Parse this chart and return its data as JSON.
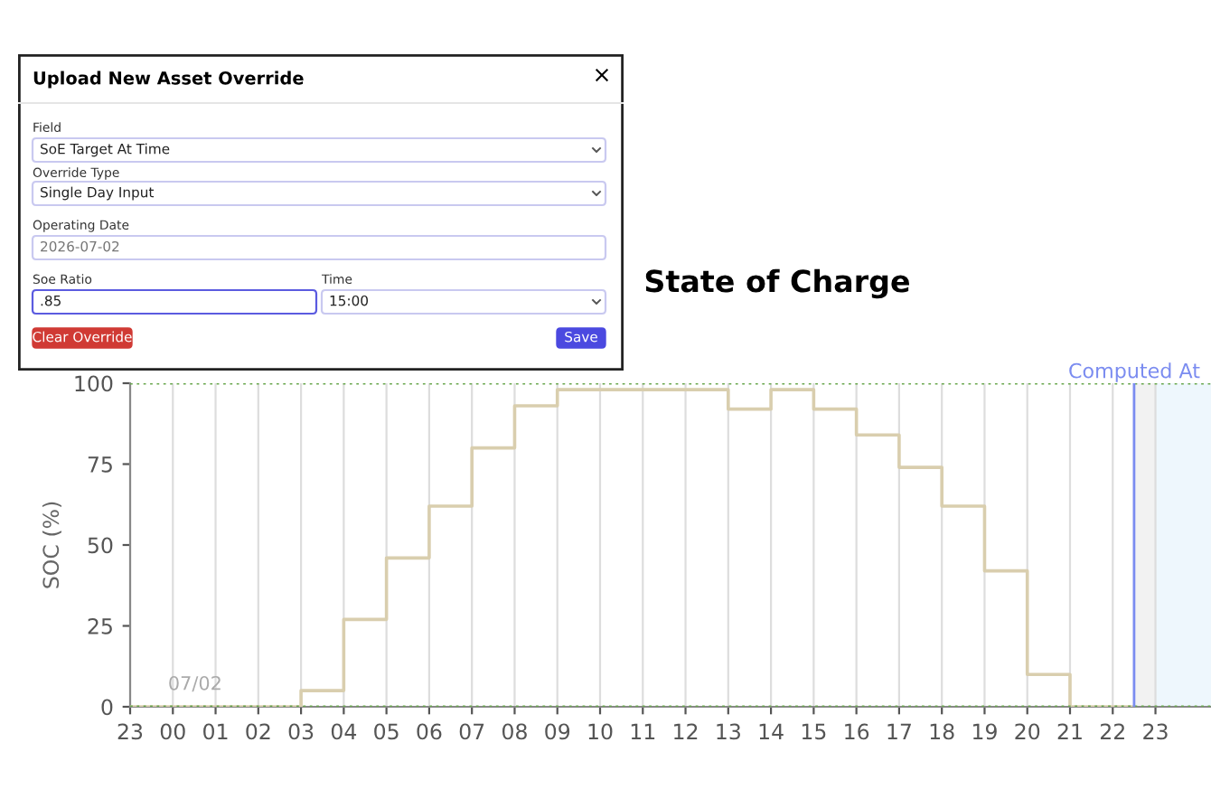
{
  "chart_data": [
    {
      "type": "other",
      "title": "Upload New Asset Override",
      "annotations": [
        "×",
        "Field",
        "SoE Target At Time",
        "Override Type",
        "Single Day Input",
        "Operating Date",
        "2026-07-02",
        "Soe Ratio",
        ".85",
        "Time",
        "15:00",
        "Clear Override",
        "Save"
      ]
    },
    {
      "type": "step",
      "title": "State of Charge",
      "ylabel": "SOC (%)",
      "series": [
        {
          "color": "#d9ceae",
          "x": [
            "2026-07-01T23:00",
            "2026-07-02T03:00",
            "2026-07-02T04:00",
            "2026-07-02T05:00",
            "2026-07-02T06:00",
            "2026-07-02T07:00",
            "2026-07-02T08:00",
            "2026-07-02T09:00",
            "2026-07-02T13:00",
            "2026-07-02T14:00",
            "2026-07-02T15:00",
            "2026-07-02T16:00",
            "2026-07-02T17:00",
            "2026-07-02T18:00",
            "2026-07-02T19:00",
            "2026-07-02T20:00",
            "2026-07-02T21:00",
            "2026-07-02T22:30"
          ],
          "values": [
            0,
            5,
            27,
            46,
            62,
            80,
            93,
            98,
            92,
            98,
            92,
            84,
            74,
            62,
            42,
            10,
            0,
            0
          ]
        }
      ],
      "xlim": [
        "2026-07-01T23:00",
        "2026-07-03T00:18"
      ],
      "ylim": [
        0,
        100
      ],
      "yticks": [
        0,
        25,
        50,
        75,
        100
      ],
      "xticks": [
        {
          "value": "2026-07-01T23:00",
          "label": "23"
        },
        {
          "value": "2026-07-02T00:00",
          "label": "00"
        },
        {
          "value": "2026-07-02T01:00",
          "label": "01"
        },
        {
          "value": "2026-07-02T02:00",
          "label": "02"
        },
        {
          "value": "2026-07-02T03:00",
          "label": "03"
        },
        {
          "value": "2026-07-02T04:00",
          "label": "04"
        },
        {
          "value": "2026-07-02T05:00",
          "label": "05"
        },
        {
          "value": "2026-07-02T06:00",
          "label": "06"
        },
        {
          "value": "2026-07-02T07:00",
          "label": "07"
        },
        {
          "value": "2026-07-02T08:00",
          "label": "08"
        },
        {
          "value": "2026-07-02T09:00",
          "label": "09"
        },
        {
          "value": "2026-07-02T10:00",
          "label": "10"
        },
        {
          "value": "2026-07-02T11:00",
          "label": "11"
        },
        {
          "value": "2026-07-02T12:00",
          "label": "12"
        },
        {
          "value": "2026-07-02T13:00",
          "label": "13"
        },
        {
          "value": "2026-07-02T14:00",
          "label": "14"
        },
        {
          "value": "2026-07-02T15:00",
          "label": "15"
        },
        {
          "value": "2026-07-02T16:00",
          "label": "16"
        },
        {
          "value": "2026-07-02T17:00",
          "label": "17"
        },
        {
          "value": "2026-07-02T18:00",
          "label": "18"
        },
        {
          "value": "2026-07-02T19:00",
          "label": "19"
        },
        {
          "value": "2026-07-02T20:00",
          "label": "20"
        },
        {
          "value": "2026-07-02T21:00",
          "label": "21"
        },
        {
          "value": "2026-07-02T22:00",
          "label": "22"
        },
        {
          "value": "2026-07-02T23:00",
          "label": "23"
        }
      ],
      "grid": "x",
      "ref_lines": [
        {
          "axis": "y",
          "value": 0,
          "color": "#6aa84f",
          "line_style": "dotted"
        },
        {
          "axis": "y",
          "value": 100,
          "color": "#6aa84f",
          "line_style": "dotted"
        },
        {
          "axis": "x",
          "value": "2026-07-02T22:30",
          "label": "Computed At",
          "color": "#7b8cf0",
          "line_style": "solid"
        }
      ],
      "bands": [
        {
          "axis": "x",
          "from": "2026-07-02T22:30",
          "to": "2026-07-02T23:00",
          "color": "#f2f2f2"
        },
        {
          "axis": "x",
          "from": "2026-07-02T23:00",
          "to": "2026-07-03T00:18",
          "color": "#eef7fd"
        }
      ],
      "annotations": [
        "07/02"
      ]
    }
  ]
}
